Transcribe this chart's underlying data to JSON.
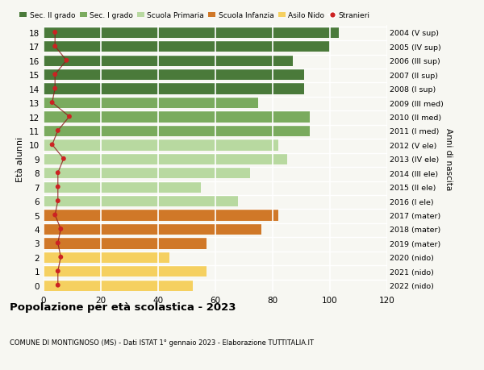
{
  "ages": [
    18,
    17,
    16,
    15,
    14,
    13,
    12,
    11,
    10,
    9,
    8,
    7,
    6,
    5,
    4,
    3,
    2,
    1,
    0
  ],
  "bar_values": [
    103,
    100,
    87,
    91,
    91,
    75,
    93,
    93,
    82,
    85,
    72,
    55,
    68,
    82,
    76,
    57,
    44,
    57,
    52
  ],
  "bar_colors": [
    "#4a7a3a",
    "#4a7a3a",
    "#4a7a3a",
    "#4a7a3a",
    "#4a7a3a",
    "#7aab5e",
    "#7aab5e",
    "#7aab5e",
    "#b8d9a0",
    "#b8d9a0",
    "#b8d9a0",
    "#b8d9a0",
    "#b8d9a0",
    "#d07828",
    "#d07828",
    "#d07828",
    "#f5d060",
    "#f5d060",
    "#f5d060"
  ],
  "stranieri_values": [
    4,
    4,
    8,
    4,
    4,
    3,
    9,
    5,
    3,
    7,
    5,
    5,
    5,
    4,
    6,
    5,
    6,
    5,
    5
  ],
  "right_labels": [
    "2004 (V sup)",
    "2005 (IV sup)",
    "2006 (III sup)",
    "2007 (II sup)",
    "2008 (I sup)",
    "2009 (III med)",
    "2010 (II med)",
    "2011 (I med)",
    "2012 (V ele)",
    "2013 (IV ele)",
    "2014 (III ele)",
    "2015 (II ele)",
    "2016 (I ele)",
    "2017 (mater)",
    "2018 (mater)",
    "2019 (mater)",
    "2020 (nido)",
    "2021 (nido)",
    "2022 (nido)"
  ],
  "legend_labels": [
    "Sec. II grado",
    "Sec. I grado",
    "Scuola Primaria",
    "Scuola Infanzia",
    "Asilo Nido",
    "Stranieri"
  ],
  "legend_colors": [
    "#4a7a3a",
    "#7aab5e",
    "#b8d9a0",
    "#d07828",
    "#f5d060",
    "#cc2222"
  ],
  "ylabel": "Età alunni",
  "right_ylabel": "Anni di nascita",
  "title": "Popolazione per età scolastica - 2023",
  "subtitle": "COMUNE DI MONTIGNOSO (MS) - Dati ISTAT 1° gennaio 2023 - Elaborazione TUTTITALIA.IT",
  "xlim": [
    0,
    120
  ],
  "xticks": [
    0,
    20,
    40,
    60,
    80,
    100,
    120
  ],
  "background_color": "#f7f7f2",
  "grid_color": "#ffffff"
}
